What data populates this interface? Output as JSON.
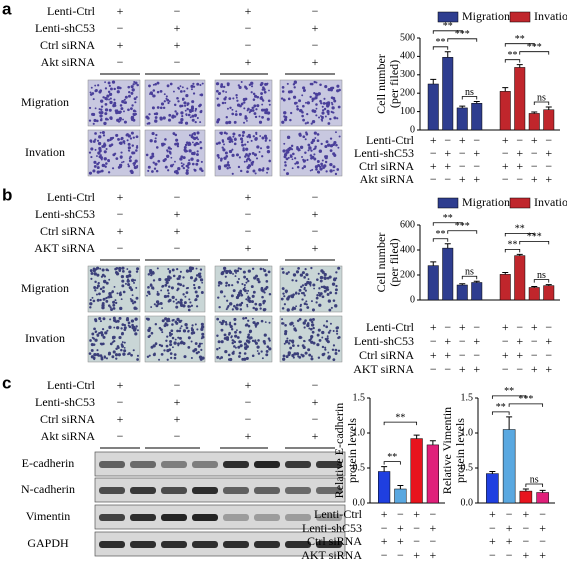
{
  "panels": [
    {
      "label": "a",
      "rows": [
        "Migration",
        "Invation"
      ],
      "treatments": [
        {
          "label": "Lenti-Ctrl",
          "signs": [
            "+",
            "−",
            "+",
            "−"
          ]
        },
        {
          "label": "Lenti-shC53",
          "signs": [
            "−",
            "+",
            "−",
            "+"
          ]
        },
        {
          "label": "Ctrl siRNA",
          "signs": [
            "+",
            "+",
            "−",
            "−"
          ]
        },
        {
          "label": "Akt siRNA",
          "signs": [
            "−",
            "−",
            "+",
            "+"
          ]
        }
      ]
    },
    {
      "label": "b",
      "rows": [
        "Migration",
        "Invation"
      ],
      "treatments": [
        {
          "label": "Lenti-Ctrl",
          "signs": [
            "+",
            "−",
            "+",
            "−"
          ]
        },
        {
          "label": "Lenti-shC53",
          "signs": [
            "−",
            "+",
            "−",
            "+"
          ]
        },
        {
          "label": "Ctrl siRNA",
          "signs": [
            "+",
            "+",
            "−",
            "−"
          ]
        },
        {
          "label": "AKT siRNA",
          "signs": [
            "−",
            "−",
            "+",
            "+"
          ]
        }
      ]
    },
    {
      "label": "c",
      "rows": [
        "E-cadherin",
        "N-cadherin",
        "Vimentin",
        "GAPDH"
      ],
      "treatments": [
        {
          "label": "Lenti-Ctrl",
          "signs": [
            "+",
            "−",
            "+",
            "−"
          ]
        },
        {
          "label": "Lenti-shC53",
          "signs": [
            "−",
            "+",
            "−",
            "+"
          ]
        },
        {
          "label": "Ctrl siRNA",
          "signs": [
            "+",
            "+",
            "−",
            "−"
          ]
        },
        {
          "label": "Akt siRNA",
          "signs": [
            "−",
            "−",
            "+",
            "+"
          ]
        }
      ]
    }
  ],
  "chart_data": [
    {
      "type": "bar",
      "y_label": [
        "Cell number",
        "(per filed)"
      ],
      "ylim": [
        0,
        500
      ],
      "yticks": [
        0,
        100,
        200,
        300,
        400,
        500
      ],
      "series": [
        {
          "name": "Migration",
          "color": "#2e3d8f",
          "values": [
            250,
            395,
            120,
            145
          ],
          "errors": [
            25,
            30,
            10,
            10
          ]
        },
        {
          "name": "Invation",
          "color": "#c0262c",
          "values": [
            210,
            340,
            90,
            110
          ],
          "errors": [
            20,
            15,
            8,
            15
          ]
        }
      ],
      "annotations": [
        "**",
        "**",
        "***",
        "ns",
        "**",
        "**",
        "***",
        "ns"
      ],
      "treatments": [
        {
          "label": "Lenti-Ctrl",
          "signs": [
            "+",
            "−",
            "+",
            "−",
            "+",
            "−",
            "+",
            "−"
          ]
        },
        {
          "label": "Lenti-shC53",
          "signs": [
            "−",
            "+",
            "−",
            "+",
            "−",
            "+",
            "−",
            "+"
          ]
        },
        {
          "label": "Ctrl siRNA",
          "signs": [
            "+",
            "+",
            "−",
            "−",
            "+",
            "+",
            "−",
            "−"
          ]
        },
        {
          "label": "Akt siRNA",
          "signs": [
            "−",
            "−",
            "+",
            "+",
            "−",
            "−",
            "+",
            "+"
          ]
        }
      ]
    },
    {
      "type": "bar",
      "y_label": [
        "Cell number",
        "(per filed)"
      ],
      "ylim": [
        0,
        600
      ],
      "yticks": [
        0,
        200,
        400,
        600
      ],
      "series": [
        {
          "name": "Migration",
          "color": "#2e3d8f",
          "values": [
            275,
            415,
            120,
            140
          ],
          "errors": [
            30,
            35,
            10,
            10
          ]
        },
        {
          "name": "Invation",
          "color": "#c0262c",
          "values": [
            205,
            355,
            100,
            115
          ],
          "errors": [
            15,
            10,
            8,
            8
          ]
        }
      ],
      "annotations": [
        "**",
        "**",
        "***",
        "ns",
        "**",
        "**",
        "***",
        "ns"
      ],
      "treatments": [
        {
          "label": "Lenti-Ctrl",
          "signs": [
            "+",
            "−",
            "+",
            "−",
            "+",
            "−",
            "+",
            "−"
          ]
        },
        {
          "label": "Lenti-shC53",
          "signs": [
            "−",
            "+",
            "−",
            "+",
            "−",
            "+",
            "−",
            "+"
          ]
        },
        {
          "label": "Ctrl siRNA",
          "signs": [
            "+",
            "+",
            "−",
            "−",
            "+",
            "+",
            "−",
            "−"
          ]
        },
        {
          "label": "AKT siRNA",
          "signs": [
            "−",
            "−",
            "+",
            "+",
            "−",
            "−",
            "+",
            "+"
          ]
        }
      ]
    },
    {
      "type": "bar",
      "y_label": [
        "Relative E-cadherin",
        "protein levels"
      ],
      "ylim": [
        0,
        1.5
      ],
      "yticks": [
        {
          "value": 0,
          "label": "0.0"
        },
        0.5,
        {
          "value": 1,
          "label": "1.0"
        },
        1.5
      ],
      "series": [
        {
          "colors": [
            "#1f3fe0",
            "#5aa8e0",
            "#e8141e",
            "#e0207a"
          ],
          "values": [
            0.45,
            0.2,
            0.92,
            0.83
          ],
          "errors": [
            0.07,
            0.05,
            0.05,
            0.06
          ]
        }
      ],
      "annotations": [
        "**",
        "**"
      ],
      "treatments": [
        {
          "label": "Lenti-Ctrl",
          "signs": [
            "+",
            "−",
            "+",
            "−"
          ]
        },
        {
          "label": "Lenti-shC53",
          "signs": [
            "−",
            "+",
            "−",
            "+"
          ]
        },
        {
          "label": "Ctrl siRNA",
          "signs": [
            "+",
            "+",
            "−",
            "−"
          ]
        },
        {
          "label": "AKT siRNA",
          "signs": [
            "−",
            "−",
            "+",
            "+"
          ]
        }
      ]
    },
    {
      "type": "bar",
      "y_label": [
        "Relative Vimentin",
        "protein levels"
      ],
      "ylim": [
        0,
        1.5
      ],
      "yticks": [
        {
          "value": 0,
          "label": "0.0"
        },
        0.5,
        {
          "value": 1,
          "label": "1.0"
        },
        1.5
      ],
      "series": [
        {
          "colors": [
            "#1f3fe0",
            "#5aa8e0",
            "#e8141e",
            "#e0207a"
          ],
          "values": [
            0.42,
            1.05,
            0.17,
            0.15
          ],
          "errors": [
            0.03,
            0.18,
            0.03,
            0.03
          ]
        }
      ],
      "annotations": [
        "**",
        "**",
        "***",
        "ns"
      ],
      "treatments": [
        {
          "signs": [
            "+",
            "−",
            "+",
            "−"
          ]
        },
        {
          "signs": [
            "−",
            "+",
            "−",
            "+"
          ]
        },
        {
          "signs": [
            "+",
            "+",
            "−",
            "−"
          ]
        },
        {
          "signs": [
            "−",
            "−",
            "+",
            "+"
          ]
        }
      ]
    }
  ]
}
